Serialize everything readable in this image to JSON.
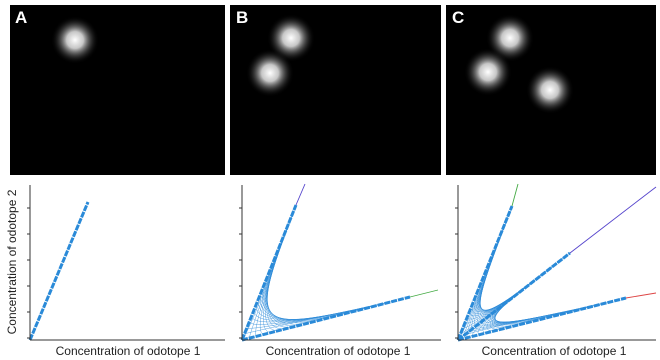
{
  "panels": [
    {
      "label": "A",
      "x_label": "Concentration of odotope 1"
    },
    {
      "label": "B",
      "x_label": "Concentration of odotope 1"
    },
    {
      "label": "C",
      "x_label": "Concentration of odotope 1"
    }
  ],
  "y_label": "Concentration of odotope 2"
}
